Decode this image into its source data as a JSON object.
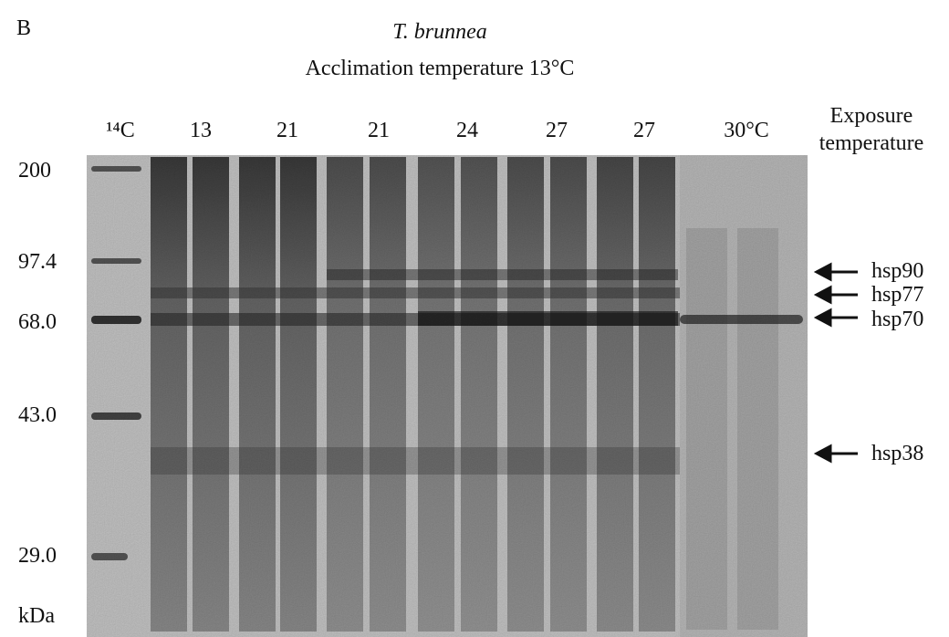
{
  "panel": "B",
  "title": "T. brunnea",
  "subtitle": "Acclimation temperature 13°C",
  "lane_labels": [
    "¹⁴C",
    "13",
    "21",
    "21",
    "24",
    "27",
    "27",
    "30°C"
  ],
  "exposure_label": "Exposure temperature",
  "markers": [
    "200",
    "97.4",
    "68.0",
    "43.0",
    "29.0"
  ],
  "unit": "kDa",
  "bands": [
    "hsp90",
    "hsp77",
    "hsp70",
    "hsp38"
  ]
}
